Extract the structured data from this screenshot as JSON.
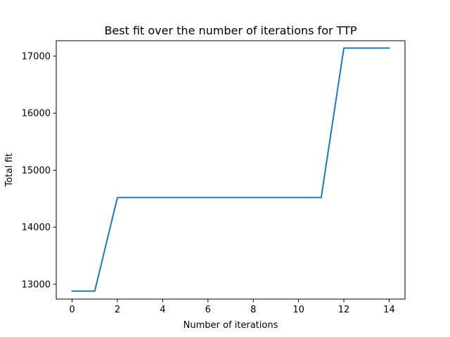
{
  "chart_data": {
    "type": "line",
    "title": "Best fit over the number of iterations for TTP",
    "xlabel": "Number of iterations",
    "ylabel": "Total fit",
    "xlim": [
      -0.7,
      14.7
    ],
    "ylim": [
      12740,
      17270
    ],
    "xticks": [
      0,
      2,
      4,
      6,
      8,
      10,
      12,
      14
    ],
    "yticks": [
      13000,
      14000,
      15000,
      16000,
      17000
    ],
    "grid": false,
    "legend": "none",
    "series": [
      {
        "color": "#1f77b4",
        "x": [
          0,
          1,
          2,
          3,
          4,
          5,
          6,
          7,
          8,
          9,
          10,
          11,
          12,
          13,
          14
        ],
        "y": [
          12880,
          12880,
          14520,
          14520,
          14520,
          14520,
          14520,
          14520,
          14520,
          14520,
          14520,
          14520,
          17140,
          17140,
          17140
        ]
      }
    ]
  }
}
